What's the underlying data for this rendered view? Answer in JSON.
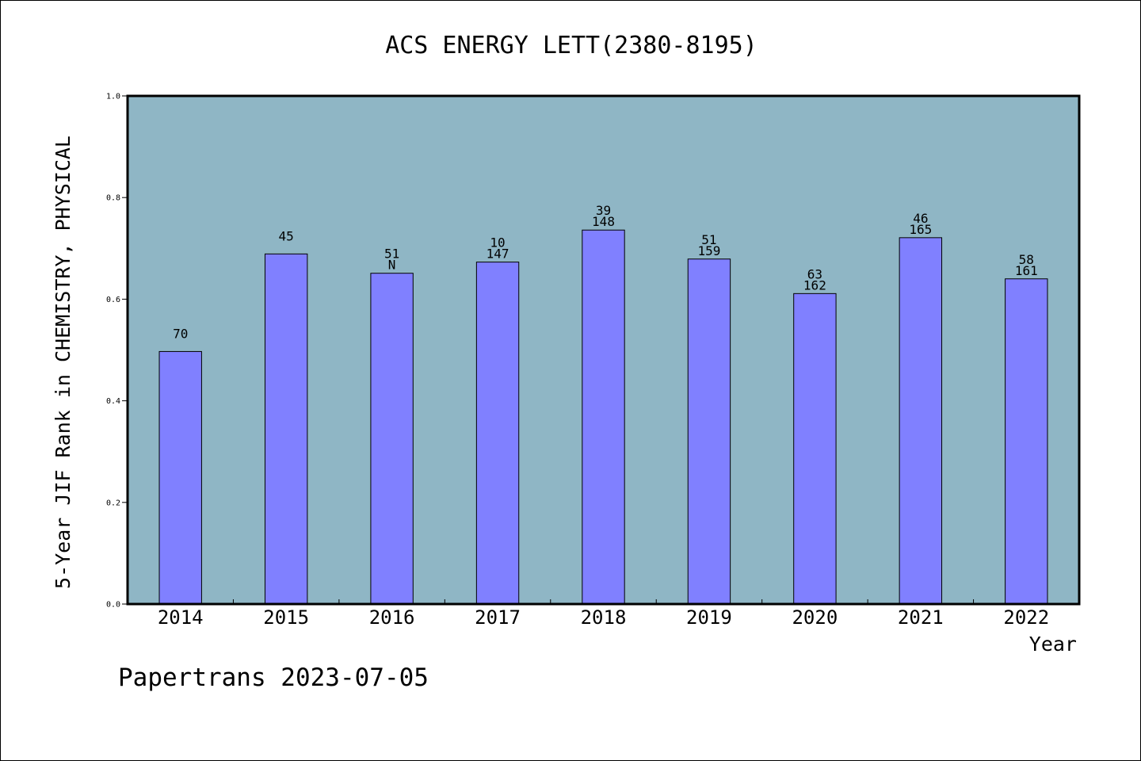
{
  "chart_data": {
    "type": "bar",
    "title": "ACS ENERGY LETT(2380-8195)",
    "xlabel": "Year",
    "ylabel": "5-Year JIF Rank in CHEMISTRY, PHYSICAL",
    "footer": "Papertrans 2023-07-05",
    "categories": [
      "2014",
      "2015",
      "2016",
      "2017",
      "2018",
      "2019",
      "2020",
      "2021",
      "2022"
    ],
    "values": [
      0.497,
      0.689,
      0.651,
      0.673,
      0.736,
      0.679,
      0.611,
      0.721,
      0.64
    ],
    "annotations": [
      [
        "70"
      ],
      [
        "45"
      ],
      [
        "51",
        "N"
      ],
      [
        "10",
        "147"
      ],
      [
        "39",
        "148"
      ],
      [
        "51",
        "159"
      ],
      [
        "63",
        "162"
      ],
      [
        "46",
        "165"
      ],
      [
        "58",
        "161"
      ]
    ],
    "ylim": [
      0,
      1.0
    ],
    "yticks": [
      "0.0",
      "0.2",
      "0.4",
      "0.6",
      "0.8",
      "1.0"
    ],
    "grid": false,
    "colors": {
      "plot_background": "#8fb6c5",
      "bar_fill": "#8080ff",
      "bar_stroke": "#000000",
      "axis": "#000000"
    }
  }
}
